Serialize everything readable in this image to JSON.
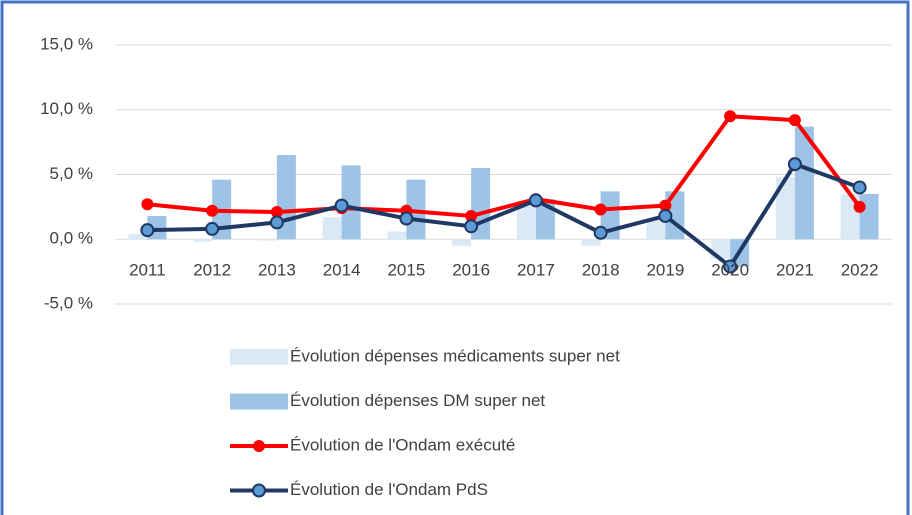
{
  "chart_data": {
    "type": "bar",
    "categories": [
      "2011",
      "2012",
      "2013",
      "2014",
      "2015",
      "2016",
      "2017",
      "2018",
      "2019",
      "2020",
      "2021",
      "2022"
    ],
    "series": [
      {
        "name": "Évolution dépenses médicaments super net",
        "type": "bar",
        "color": "#dbe8f6",
        "values": [
          0.4,
          -0.2,
          -0.1,
          1.7,
          0.6,
          -0.5,
          3.0,
          -0.5,
          1.5,
          -1.5,
          4.8,
          3.5
        ]
      },
      {
        "name": "Évolution dépenses DM super net",
        "type": "bar",
        "color": "#9dc3e6",
        "values": [
          1.8,
          4.6,
          6.5,
          5.7,
          4.6,
          5.5,
          3.1,
          3.7,
          3.7,
          -2.1,
          8.7,
          3.5
        ]
      },
      {
        "name": "Évolution de l'Ondam exécuté",
        "type": "line",
        "color": "#ff0000",
        "values": [
          2.7,
          2.2,
          2.1,
          2.4,
          2.2,
          1.8,
          3.1,
          2.3,
          2.6,
          9.5,
          9.2,
          2.5
        ]
      },
      {
        "name": "Évolution de l'Ondam PdS",
        "type": "line",
        "color": "#1f3864",
        "marker_color": "#5b9bd5",
        "values": [
          0.7,
          0.8,
          1.3,
          2.6,
          1.6,
          1.0,
          3.0,
          0.5,
          1.8,
          -2.1,
          5.8,
          4.0
        ]
      }
    ],
    "ylim": [
      -5,
      15
    ],
    "yticks": [
      {
        "value": -5,
        "label": "-5,0 %"
      },
      {
        "value": 0,
        "label": "0,0 %"
      },
      {
        "value": 5,
        "label": "5,0 %"
      },
      {
        "value": 10,
        "label": "10,0 %"
      },
      {
        "value": 15,
        "label": "15,0 %"
      }
    ],
    "grid": true,
    "legend": "bottom"
  }
}
